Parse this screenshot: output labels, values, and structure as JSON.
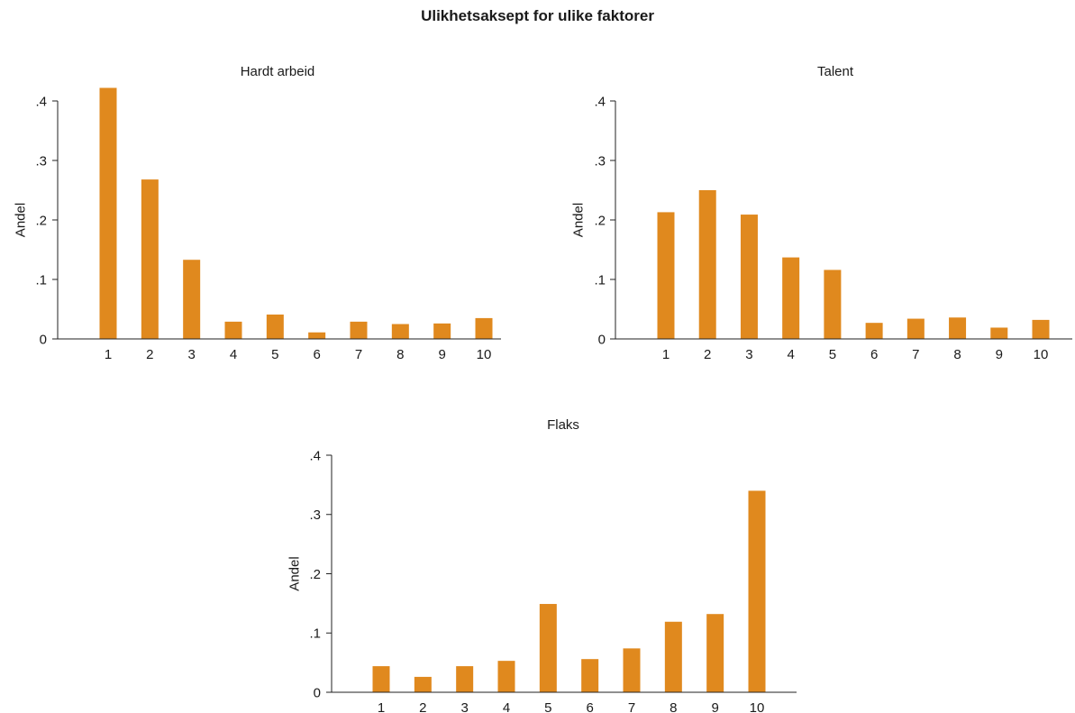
{
  "title": "Ulikhetsaksept for ulike faktorer",
  "bar_color": "#E0891E",
  "chart_data": [
    {
      "type": "bar",
      "title": "Hardt arbeid",
      "ylabel": "Andel",
      "xlabel": "",
      "categories": [
        "1",
        "2",
        "3",
        "4",
        "5",
        "6",
        "7",
        "8",
        "9",
        "10"
      ],
      "values": [
        0.422,
        0.268,
        0.133,
        0.029,
        0.041,
        0.011,
        0.029,
        0.025,
        0.026,
        0.035
      ],
      "ylim": [
        0,
        0.4
      ],
      "yticks": [
        0,
        0.1,
        0.2,
        0.3,
        0.4
      ],
      "ytick_labels": [
        "0",
        ".1",
        ".2",
        ".3",
        ".4"
      ],
      "grid": false
    },
    {
      "type": "bar",
      "title": "Talent",
      "ylabel": "Andel",
      "xlabel": "",
      "categories": [
        "1",
        "2",
        "3",
        "4",
        "5",
        "6",
        "7",
        "8",
        "9",
        "10"
      ],
      "values": [
        0.213,
        0.25,
        0.209,
        0.137,
        0.116,
        0.027,
        0.034,
        0.036,
        0.019,
        0.032
      ],
      "ylim": [
        0,
        0.4
      ],
      "yticks": [
        0,
        0.1,
        0.2,
        0.3,
        0.4
      ],
      "ytick_labels": [
        "0",
        ".1",
        ".2",
        ".3",
        ".4"
      ],
      "grid": false
    },
    {
      "type": "bar",
      "title": "Flaks",
      "ylabel": "Andel",
      "xlabel": "",
      "categories": [
        "1",
        "2",
        "3",
        "4",
        "5",
        "6",
        "7",
        "8",
        "9",
        "10"
      ],
      "values": [
        0.044,
        0.026,
        0.044,
        0.053,
        0.149,
        0.056,
        0.074,
        0.119,
        0.132,
        0.34
      ],
      "ylim": [
        0,
        0.4
      ],
      "yticks": [
        0,
        0.1,
        0.2,
        0.3,
        0.4
      ],
      "ytick_labels": [
        "0",
        ".1",
        ".2",
        ".3",
        ".4"
      ],
      "grid": false
    }
  ]
}
